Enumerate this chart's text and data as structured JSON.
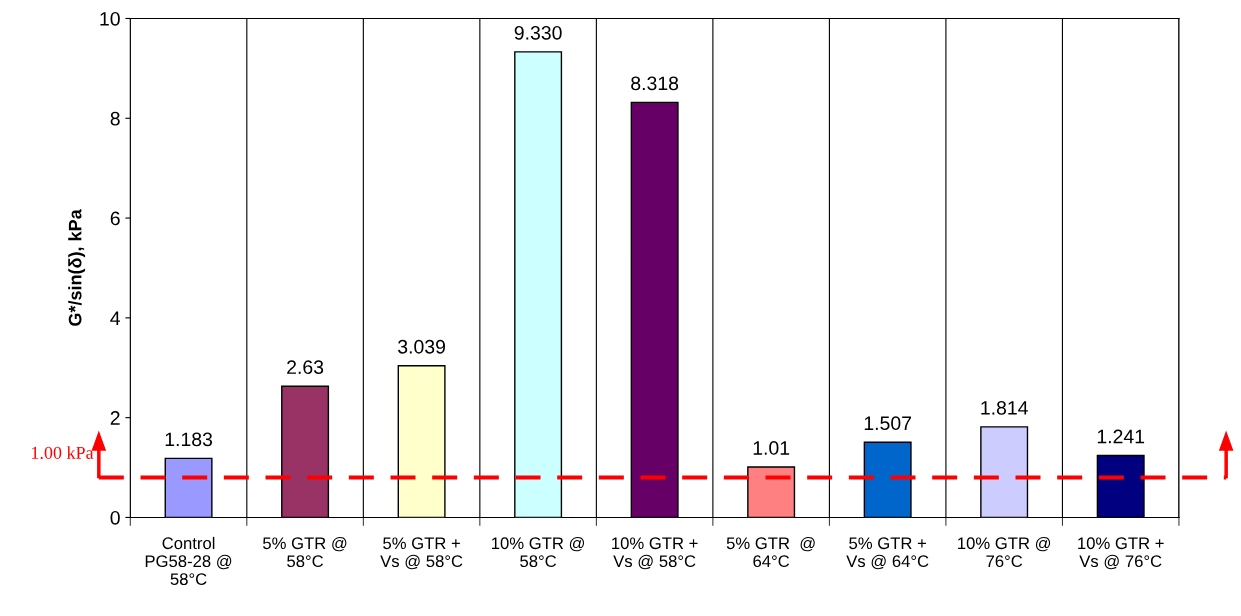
{
  "chart_data": {
    "type": "bar",
    "ylabel": "G*/sin(δ), kPa",
    "categories": [
      "Control\nPG58-28 @\n58°C",
      "5% GTR @\n58°C",
      "5% GTR +\nVs @ 58°C",
      "10% GTR @\n58°C",
      "10% GTR +\nVs @ 58°C",
      "5% GTR  @\n64°C",
      "5% GTR +\nVs @ 64°C",
      "10% GTR @\n76°C",
      "10% GTR +\nVs @ 76°C"
    ],
    "values": [
      1.183,
      2.63,
      3.039,
      9.33,
      8.318,
      1.01,
      1.507,
      1.814,
      1.241
    ],
    "value_labels": [
      "1.183",
      "2.63",
      "3.039",
      "9.330",
      "8.318",
      "1.01",
      "1.507",
      "1.814",
      "1.241"
    ],
    "colors": [
      "#9999ff",
      "#993366",
      "#ffffcc",
      "#ccffff",
      "#660066",
      "#ff8080",
      "#0066cc",
      "#ccccff",
      "#000080"
    ],
    "ylim": [
      0,
      10
    ],
    "yticks": [
      0,
      2,
      4,
      6,
      8,
      10
    ],
    "grid": "x",
    "legend": false,
    "ref_lines": [
      {
        "axis": "y",
        "value": 0.8,
        "label": "1.00 kPa",
        "color": "#ff0000",
        "line_style": "dashed"
      }
    ]
  }
}
